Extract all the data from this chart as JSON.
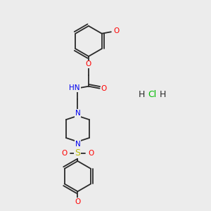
{
  "background_color": "#ececec",
  "bond_color": "#2a2a2a",
  "atom_colors": {
    "O": "#ff0000",
    "N": "#0000ee",
    "S": "#bbbb00",
    "C": "#2a2a2a",
    "H": "#2a2a2a",
    "Cl": "#00bb00"
  },
  "lw": 1.3,
  "fs": 7.5,
  "fs_hcl": 9,
  "fig_w": 3.0,
  "fig_h": 3.0,
  "dpi": 100,
  "xlim": [
    0,
    10
  ],
  "ylim": [
    0,
    10
  ]
}
